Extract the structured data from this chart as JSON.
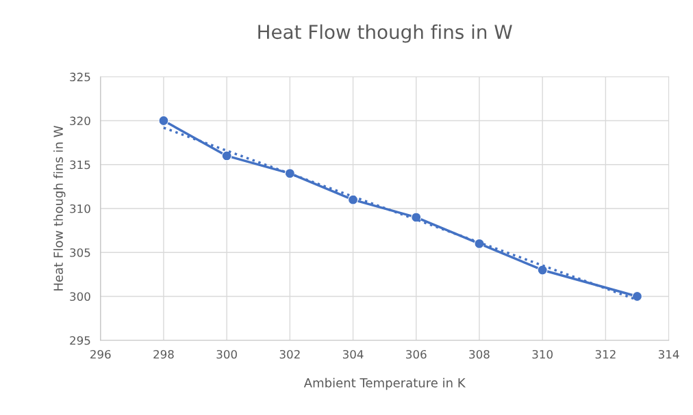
{
  "chart_data": {
    "type": "line",
    "title": "Heat Flow though fins in W",
    "xlabel": "Ambient Temperature in K",
    "ylabel": "Heat Flow though fins in W",
    "series": [
      {
        "color": "#4472c4",
        "x": [
          298,
          300,
          302,
          304,
          306,
          308,
          310,
          313
        ],
        "values": [
          320,
          316,
          314,
          311,
          309,
          306,
          303,
          300
        ],
        "marker": "circle",
        "line_style": "solid"
      },
      {
        "type": "line",
        "color": "#4472c4",
        "x": [
          298,
          313
        ],
        "values": [
          319.2,
          299.6
        ],
        "marker": "none",
        "line_style": "dotted"
      }
    ],
    "xlim": [
      296,
      314
    ],
    "xticks": [
      296,
      298,
      300,
      302,
      304,
      306,
      308,
      310,
      312,
      314
    ],
    "ylim": [
      295,
      325
    ],
    "yticks": [
      295,
      300,
      305,
      310,
      315,
      320,
      325
    ],
    "grid": true
  }
}
